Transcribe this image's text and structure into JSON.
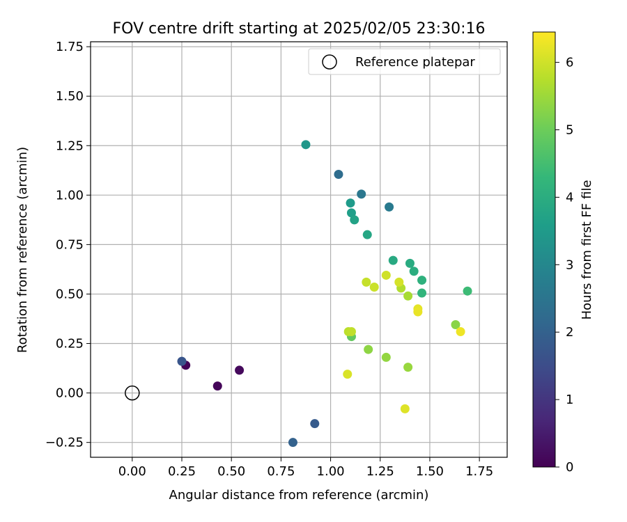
{
  "chart_data": {
    "type": "scatter",
    "title": "FOV centre drift starting at 2025/02/05 23:30:16",
    "xlabel": "Angular distance from reference (arcmin)",
    "ylabel": "Rotation from reference (arcmin)",
    "xlim": [
      -0.21,
      1.89
    ],
    "ylim": [
      -0.325,
      1.775
    ],
    "xticks": [
      "0.00",
      "0.25",
      "0.50",
      "0.75",
      "1.00",
      "1.25",
      "1.50",
      "1.75"
    ],
    "yticks": [
      "−0.25",
      "0.00",
      "0.25",
      "0.50",
      "0.75",
      "1.00",
      "1.25",
      "1.50",
      "1.75"
    ],
    "grid": true,
    "legend": {
      "placement": "upper right",
      "entries": [
        "Reference platepar"
      ]
    },
    "reference_point": {
      "x": 0.0,
      "y": 0.0
    },
    "colorbar": {
      "label": "Hours from first FF file",
      "colormap": "viridis",
      "range": [
        0,
        6.45
      ],
      "ticks": [
        "0",
        "1",
        "2",
        "3",
        "4",
        "5",
        "6"
      ]
    },
    "points": [
      {
        "x": 0.27,
        "y": 0.14,
        "hours": 0.05
      },
      {
        "x": 0.43,
        "y": 0.035,
        "hours": 0.1
      },
      {
        "x": 0.54,
        "y": 0.115,
        "hours": 0.15
      },
      {
        "x": 0.25,
        "y": 0.16,
        "hours": 1.7
      },
      {
        "x": 0.92,
        "y": -0.155,
        "hours": 1.85
      },
      {
        "x": 0.81,
        "y": -0.25,
        "hours": 2.0
      },
      {
        "x": 1.04,
        "y": 1.105,
        "hours": 2.3
      },
      {
        "x": 1.155,
        "y": 1.005,
        "hours": 2.55
      },
      {
        "x": 1.295,
        "y": 0.94,
        "hours": 2.65
      },
      {
        "x": 0.875,
        "y": 1.255,
        "hours": 3.4
      },
      {
        "x": 1.1,
        "y": 0.96,
        "hours": 3.5
      },
      {
        "x": 1.105,
        "y": 0.91,
        "hours": 3.6
      },
      {
        "x": 1.12,
        "y": 0.875,
        "hours": 3.7
      },
      {
        "x": 1.185,
        "y": 0.8,
        "hours": 3.8
      },
      {
        "x": 1.315,
        "y": 0.67,
        "hours": 3.9
      },
      {
        "x": 1.4,
        "y": 0.655,
        "hours": 3.95
      },
      {
        "x": 1.42,
        "y": 0.615,
        "hours": 4.0
      },
      {
        "x": 1.46,
        "y": 0.57,
        "hours": 4.1
      },
      {
        "x": 1.46,
        "y": 0.505,
        "hours": 4.2
      },
      {
        "x": 1.69,
        "y": 0.515,
        "hours": 4.4
      },
      {
        "x": 1.105,
        "y": 0.285,
        "hours": 4.9
      },
      {
        "x": 1.63,
        "y": 0.345,
        "hours": 5.3
      },
      {
        "x": 1.19,
        "y": 0.22,
        "hours": 5.35
      },
      {
        "x": 1.28,
        "y": 0.18,
        "hours": 5.4
      },
      {
        "x": 1.39,
        "y": 0.13,
        "hours": 5.45
      },
      {
        "x": 1.39,
        "y": 0.49,
        "hours": 5.6
      },
      {
        "x": 1.355,
        "y": 0.53,
        "hours": 5.7
      },
      {
        "x": 1.09,
        "y": 0.31,
        "hours": 5.8
      },
      {
        "x": 1.105,
        "y": 0.31,
        "hours": 5.85
      },
      {
        "x": 1.18,
        "y": 0.56,
        "hours": 5.9
      },
      {
        "x": 1.22,
        "y": 0.535,
        "hours": 5.95
      },
      {
        "x": 1.28,
        "y": 0.595,
        "hours": 6.0
      },
      {
        "x": 1.345,
        "y": 0.56,
        "hours": 6.05
      },
      {
        "x": 1.085,
        "y": 0.095,
        "hours": 6.1
      },
      {
        "x": 1.375,
        "y": -0.08,
        "hours": 6.15
      },
      {
        "x": 1.44,
        "y": 0.425,
        "hours": 6.2
      },
      {
        "x": 1.44,
        "y": 0.41,
        "hours": 6.25
      },
      {
        "x": 1.655,
        "y": 0.31,
        "hours": 6.3
      }
    ]
  }
}
